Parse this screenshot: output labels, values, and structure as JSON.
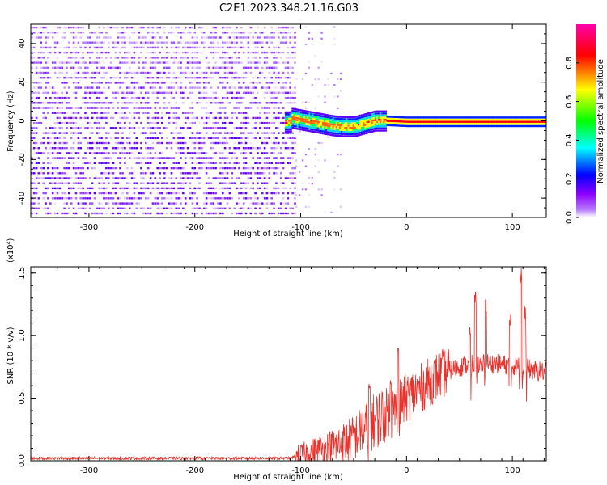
{
  "figure": {
    "title": "C2E1.2023.348.21.16.G03"
  },
  "chart_data": [
    {
      "type": "heatmap",
      "title": "C2E1.2023.348.21.16.G03",
      "xlabel": "Height of straight line (km)",
      "ylabel": "Frequency (Hz)",
      "xlim": [
        -355,
        132
      ],
      "ylim": [
        -50,
        50
      ],
      "x_ticks": [
        -300,
        -200,
        -100,
        0,
        100
      ],
      "y_ticks": [
        -40,
        -20,
        0,
        20,
        40
      ],
      "colorbar": {
        "label": "Normalized spectral amplitude",
        "range": [
          0,
          1
        ],
        "ticks": [
          "0.0",
          "0.2",
          "0.4",
          "0.6",
          "0.8"
        ],
        "colors": [
          "#ffffff",
          "#8f00ff",
          "#0000ff",
          "#00ffff",
          "#00ff00",
          "#ffff00",
          "#ff0000",
          "#ff00aa"
        ]
      },
      "description_points": {
        "ridge_height_km": [
          -110,
          -100,
          -90,
          -80,
          -70,
          -60,
          -50,
          -40,
          -30,
          -20,
          0,
          50,
          100,
          130
        ],
        "ridge_frequency_hz": [
          2,
          1,
          0,
          -1,
          -2,
          -2.5,
          -2.5,
          -1,
          0.5,
          0.5,
          0,
          0,
          0,
          0
        ]
      },
      "grid": false
    },
    {
      "type": "line",
      "xlabel": "Height of straight line (km)",
      "ylabel": "SNR (10 * v/v)",
      "y_multiplier": "(x10⁴)",
      "xlim": [
        -355,
        132
      ],
      "ylim": [
        0,
        1.55
      ],
      "x_ticks": [
        -300,
        -200,
        -100,
        0,
        100
      ],
      "y_ticks": [
        "0.0",
        "0.5",
        "1.0",
        "1.5"
      ],
      "color": "#e8332d",
      "x": [
        -355,
        -300,
        -250,
        -200,
        -150,
        -110,
        -100,
        -90,
        -80,
        -70,
        -60,
        -50,
        -40,
        -30,
        -20,
        -10,
        0,
        10,
        20,
        30,
        40,
        50,
        60,
        70,
        80,
        90,
        100,
        110,
        120,
        132
      ],
      "y": [
        0.02,
        0.02,
        0.02,
        0.02,
        0.02,
        0.02,
        0.05,
        0.07,
        0.09,
        0.11,
        0.14,
        0.18,
        0.25,
        0.32,
        0.38,
        0.42,
        0.5,
        0.56,
        0.62,
        0.68,
        0.72,
        0.75,
        0.77,
        0.78,
        0.78,
        0.77,
        0.76,
        0.75,
        0.72,
        0.71
      ],
      "peaks": [
        {
          "x": -35,
          "y": 0.62
        },
        {
          "x": -15,
          "y": 0.68
        },
        {
          "x": -8,
          "y": 0.95
        },
        {
          "x": 60,
          "y": 1.1
        },
        {
          "x": 65,
          "y": 1.35
        },
        {
          "x": 75,
          "y": 1.3
        },
        {
          "x": 98,
          "y": 1.2
        },
        {
          "x": 108,
          "y": 1.55
        },
        {
          "x": 112,
          "y": 1.25
        }
      ],
      "grid": false
    }
  ]
}
